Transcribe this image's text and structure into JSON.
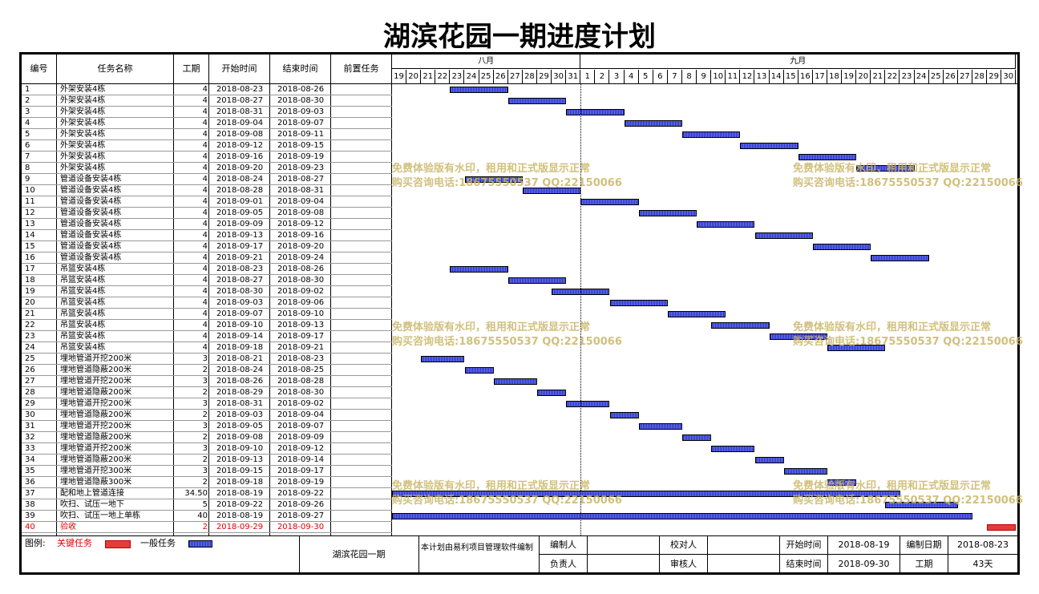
{
  "title": "湖滨花园一期进度计划",
  "columns": {
    "id": "编号",
    "name": "任务名称",
    "duration": "工期",
    "start": "开始时间",
    "end": "结束时间",
    "pred": "前置任务"
  },
  "months": [
    {
      "label": "八月",
      "days": [
        "19",
        "20",
        "21",
        "22",
        "23",
        "24",
        "25",
        "26",
        "27",
        "28",
        "29",
        "30",
        "31"
      ]
    },
    {
      "label": "九月",
      "days": [
        "1",
        "2",
        "3",
        "4",
        "5",
        "6",
        "7",
        "8",
        "9",
        "10",
        "11",
        "12",
        "13",
        "14",
        "15",
        "16",
        "17",
        "18",
        "19",
        "20",
        "21",
        "22",
        "23",
        "24",
        "25",
        "26",
        "27",
        "28",
        "29",
        "30"
      ]
    }
  ],
  "tasks": [
    {
      "id": "1",
      "name": "外架安装4栋",
      "dur": "4",
      "start": "2018-08-23",
      "end": "2018-08-26",
      "s": 4,
      "e": 7
    },
    {
      "id": "2",
      "name": "外架安装4栋",
      "dur": "4",
      "start": "2018-08-27",
      "end": "2018-08-30",
      "s": 8,
      "e": 11
    },
    {
      "id": "3",
      "name": "外架安装4栋",
      "dur": "4",
      "start": "2018-08-31",
      "end": "2018-09-03",
      "s": 12,
      "e": 15
    },
    {
      "id": "4",
      "name": "外架安装4栋",
      "dur": "4",
      "start": "2018-09-04",
      "end": "2018-09-07",
      "s": 16,
      "e": 19
    },
    {
      "id": "5",
      "name": "外架安装4栋",
      "dur": "4",
      "start": "2018-09-08",
      "end": "2018-09-11",
      "s": 20,
      "e": 23
    },
    {
      "id": "6",
      "name": "外架安装4栋",
      "dur": "4",
      "start": "2018-09-12",
      "end": "2018-09-15",
      "s": 24,
      "e": 27
    },
    {
      "id": "7",
      "name": "外架安装4栋",
      "dur": "4",
      "start": "2018-09-16",
      "end": "2018-09-19",
      "s": 28,
      "e": 31
    },
    {
      "id": "8",
      "name": "外架安装4栋",
      "dur": "4",
      "start": "2018-09-20",
      "end": "2018-09-23",
      "s": 32,
      "e": 35
    },
    {
      "id": "9",
      "name": "管道设备安装4栋",
      "dur": "4",
      "start": "2018-08-24",
      "end": "2018-08-27",
      "s": 5,
      "e": 8
    },
    {
      "id": "10",
      "name": "管道设备安装4栋",
      "dur": "4",
      "start": "2018-08-28",
      "end": "2018-08-31",
      "s": 9,
      "e": 12
    },
    {
      "id": "11",
      "name": "管道设备安装4栋",
      "dur": "4",
      "start": "2018-09-01",
      "end": "2018-09-04",
      "s": 13,
      "e": 16
    },
    {
      "id": "12",
      "name": "管道设备安装4栋",
      "dur": "4",
      "start": "2018-09-05",
      "end": "2018-09-08",
      "s": 17,
      "e": 20
    },
    {
      "id": "13",
      "name": "管道设备安装4栋",
      "dur": "4",
      "start": "2018-09-09",
      "end": "2018-09-12",
      "s": 21,
      "e": 24
    },
    {
      "id": "14",
      "name": "管道设备安装4栋",
      "dur": "4",
      "start": "2018-09-13",
      "end": "2018-09-16",
      "s": 25,
      "e": 28
    },
    {
      "id": "15",
      "name": "管道设备安装4栋",
      "dur": "4",
      "start": "2018-09-17",
      "end": "2018-09-20",
      "s": 29,
      "e": 32
    },
    {
      "id": "16",
      "name": "管道设备安装4栋",
      "dur": "4",
      "start": "2018-09-21",
      "end": "2018-09-24",
      "s": 33,
      "e": 36
    },
    {
      "id": "17",
      "name": "吊篮安装4栋",
      "dur": "4",
      "start": "2018-08-23",
      "end": "2018-08-26",
      "s": 4,
      "e": 7
    },
    {
      "id": "18",
      "name": "吊篮安装4栋",
      "dur": "4",
      "start": "2018-08-27",
      "end": "2018-08-30",
      "s": 8,
      "e": 11
    },
    {
      "id": "19",
      "name": "吊篮安装4栋",
      "dur": "4",
      "start": "2018-08-30",
      "end": "2018-09-02",
      "s": 11,
      "e": 14
    },
    {
      "id": "20",
      "name": "吊篮安装4栋",
      "dur": "4",
      "start": "2018-09-03",
      "end": "2018-09-06",
      "s": 15,
      "e": 18
    },
    {
      "id": "21",
      "name": "吊篮安装4栋",
      "dur": "4",
      "start": "2018-09-07",
      "end": "2018-09-10",
      "s": 19,
      "e": 22
    },
    {
      "id": "22",
      "name": "吊篮安装4栋",
      "dur": "4",
      "start": "2018-09-10",
      "end": "2018-09-13",
      "s": 22,
      "e": 25
    },
    {
      "id": "23",
      "name": "吊篮安装4栋",
      "dur": "4",
      "start": "2018-09-14",
      "end": "2018-09-17",
      "s": 26,
      "e": 29
    },
    {
      "id": "24",
      "name": "吊篮安装4栋",
      "dur": "4",
      "start": "2018-09-18",
      "end": "2018-09-21",
      "s": 30,
      "e": 33
    },
    {
      "id": "25",
      "name": "埋地管道开挖200米",
      "dur": "3",
      "start": "2018-08-21",
      "end": "2018-08-23",
      "s": 2,
      "e": 4
    },
    {
      "id": "26",
      "name": "埋地管道隐蔽200米",
      "dur": "2",
      "start": "2018-08-24",
      "end": "2018-08-25",
      "s": 5,
      "e": 6
    },
    {
      "id": "27",
      "name": "埋地管道开挖200米",
      "dur": "3",
      "start": "2018-08-26",
      "end": "2018-08-28",
      "s": 7,
      "e": 9
    },
    {
      "id": "28",
      "name": "埋地管道隐蔽200米",
      "dur": "2",
      "start": "2018-08-29",
      "end": "2018-08-30",
      "s": 10,
      "e": 11
    },
    {
      "id": "29",
      "name": "埋地管道开挖200米",
      "dur": "3",
      "start": "2018-08-31",
      "end": "2018-09-02",
      "s": 12,
      "e": 14
    },
    {
      "id": "30",
      "name": "埋地管道隐蔽200米",
      "dur": "2",
      "start": "2018-09-03",
      "end": "2018-09-04",
      "s": 15,
      "e": 16
    },
    {
      "id": "31",
      "name": "埋地管道开挖200米",
      "dur": "3",
      "start": "2018-09-05",
      "end": "2018-09-07",
      "s": 17,
      "e": 19
    },
    {
      "id": "32",
      "name": "埋地管道隐蔽200米",
      "dur": "2",
      "start": "2018-09-08",
      "end": "2018-09-09",
      "s": 20,
      "e": 21
    },
    {
      "id": "33",
      "name": "埋地管道开挖200米",
      "dur": "3",
      "start": "2018-09-10",
      "end": "2018-09-12",
      "s": 22,
      "e": 24
    },
    {
      "id": "34",
      "name": "埋地管道隐蔽200米",
      "dur": "2",
      "start": "2018-09-13",
      "end": "2018-09-14",
      "s": 25,
      "e": 26
    },
    {
      "id": "35",
      "name": "埋地管道开挖300米",
      "dur": "3",
      "start": "2018-09-15",
      "end": "2018-09-17",
      "s": 27,
      "e": 29
    },
    {
      "id": "36",
      "name": "埋地管道隐蔽300米",
      "dur": "2",
      "start": "2018-09-18",
      "end": "2018-09-19",
      "s": 30,
      "e": 31
    },
    {
      "id": "37",
      "name": "配和地上管道连接",
      "dur": "34.50",
      "start": "2018-08-19",
      "end": "2018-09-22",
      "s": 0,
      "e": 34
    },
    {
      "id": "38",
      "name": "吹扫、试压一地下",
      "dur": "5",
      "start": "2018-09-22",
      "end": "2018-09-26",
      "s": 34,
      "e": 38
    },
    {
      "id": "39",
      "name": "吹扫、试压一地上单栋",
      "dur": "40",
      "start": "2018-08-19",
      "end": "2018-09-27",
      "s": 0,
      "e": 39
    },
    {
      "id": "40",
      "name": "验收",
      "dur": "2",
      "start": "2018-09-29",
      "end": "2018-09-30",
      "s": 41,
      "e": 42,
      "critical": true
    }
  ],
  "watermark": {
    "line1": "免费体验版有水印，租用和正式版显示正常",
    "line2": "购买咨询电话:18675550537 QQ:22150066"
  },
  "footer": {
    "legend_label": "图例:",
    "critical_label": "关键任务",
    "normal_label": "一般任务",
    "project": "湖滨花园一期",
    "note": "本计划由易利项目管理软件编制",
    "author_label": "编制人",
    "author": "",
    "checker_label": "校对人",
    "checker": "",
    "manager_label": "负责人",
    "manager": "",
    "reviewer_label": "审核人",
    "reviewer": "",
    "start_label": "开始时间",
    "start": "2018-08-19",
    "end_label": "结束时间",
    "end": "2018-09-30",
    "date_label": "编制日期",
    "date": "2018-08-23",
    "period_label": "工期",
    "period": "43天"
  },
  "colors": {
    "normal_bar": "#2430c8",
    "critical_bar": "#e53b3b",
    "critical_text": "#e00000",
    "watermark": "#c9b667"
  }
}
